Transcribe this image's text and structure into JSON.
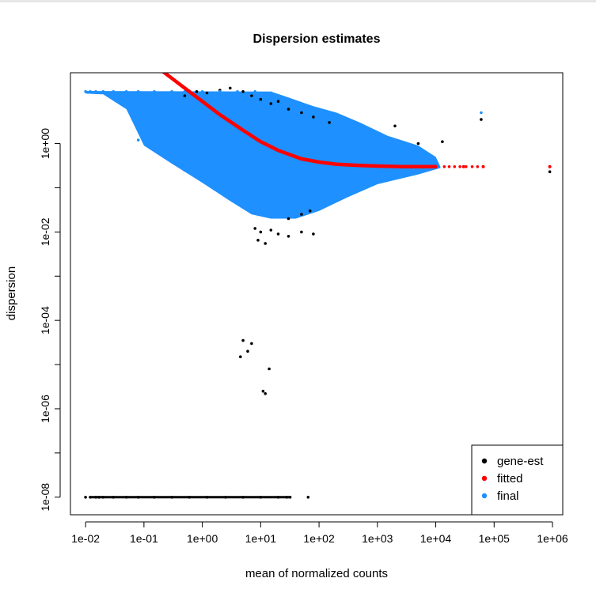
{
  "chart_data": {
    "type": "scatter",
    "title": "Dispersion estimates",
    "xlabel": "mean of normalized counts",
    "ylabel": "dispersion",
    "xscale": "log",
    "yscale": "log",
    "xlim": [
      0.0055,
      1500000
    ],
    "ylim": [
      4e-09,
      40
    ],
    "x_ticks": [
      0.01,
      0.1,
      1,
      10,
      100,
      1000,
      10000,
      100000,
      1000000
    ],
    "x_tick_labels": [
      "1e-02",
      "1e-01",
      "1e+00",
      "1e+01",
      "1e+02",
      "1e+03",
      "1e+04",
      "1e+05",
      "1e+06"
    ],
    "y_ticks": [
      1e-08,
      1e-07,
      1e-06,
      1e-05,
      0.0001,
      0.001,
      0.01,
      0.1,
      1
    ],
    "y_tick_labels": [
      "1e-08",
      "",
      "1e-06",
      "",
      "1e-04",
      "",
      "1e-02",
      "",
      "1e+00"
    ],
    "grid": false,
    "legend_position": "bottom-right",
    "legend": [
      {
        "label": "gene-est",
        "color": "#000000"
      },
      {
        "label": "fitted",
        "color": "#ff0000"
      },
      {
        "label": "final",
        "color": "#1e90ff"
      }
    ],
    "series": [
      {
        "name": "gene-est",
        "color": "#000000",
        "points": [
          [
            0.5,
            12
          ],
          [
            0.8,
            15
          ],
          [
            1.2,
            14
          ],
          [
            2.0,
            16
          ],
          [
            3.0,
            18
          ],
          [
            5.0,
            15
          ],
          [
            7.0,
            12
          ],
          [
            10,
            10
          ],
          [
            15,
            8
          ],
          [
            20,
            9
          ],
          [
            30,
            6
          ],
          [
            50,
            5
          ],
          [
            80,
            4
          ],
          [
            150,
            3
          ],
          [
            2000,
            2.5
          ],
          [
            5000,
            1.0
          ],
          [
            13000,
            1.1
          ],
          [
            60000,
            3.5
          ],
          [
            900000,
            0.23
          ],
          [
            8,
            0.012
          ],
          [
            10,
            0.01
          ],
          [
            15,
            0.011
          ],
          [
            20,
            0.009
          ],
          [
            30,
            0.008
          ],
          [
            50,
            0.01
          ],
          [
            80,
            0.009
          ],
          [
            30,
            0.02
          ],
          [
            50,
            0.025
          ],
          [
            70,
            0.03
          ],
          [
            9,
            0.0065
          ],
          [
            12,
            0.0055
          ],
          [
            5,
            3.5e-05
          ],
          [
            6,
            2e-05
          ],
          [
            4.5,
            1.5e-05
          ],
          [
            7,
            3e-05
          ],
          [
            14,
            8e-06
          ],
          [
            11,
            2.5e-06
          ],
          [
            12,
            2.2e-06
          ],
          [
            0.01,
            1e-08
          ],
          [
            0.012,
            1e-08
          ],
          [
            0.015,
            1e-08
          ],
          [
            0.017,
            1e-08
          ],
          [
            0.02,
            1e-08
          ],
          [
            0.03,
            1e-08
          ],
          [
            0.05,
            1e-08
          ],
          [
            0.08,
            1e-08
          ],
          [
            0.15,
            1e-08
          ],
          [
            0.3,
            1e-08
          ],
          [
            0.6,
            1e-08
          ],
          [
            1.2,
            1e-08
          ],
          [
            2.5,
            1e-08
          ],
          [
            5,
            1e-08
          ],
          [
            10,
            1e-08
          ],
          [
            20,
            1e-08
          ],
          [
            28,
            1e-08
          ],
          [
            32,
            1e-08
          ],
          [
            65,
            1e-08
          ]
        ]
      },
      {
        "name": "fitted",
        "color": "#ff0000",
        "points": [
          [
            0.18,
            50
          ],
          [
            0.3,
            30
          ],
          [
            0.5,
            18
          ],
          [
            1,
            9
          ],
          [
            2,
            4.5
          ],
          [
            5,
            2
          ],
          [
            10,
            1.1
          ],
          [
            20,
            0.7
          ],
          [
            50,
            0.45
          ],
          [
            100,
            0.38
          ],
          [
            200,
            0.34
          ],
          [
            500,
            0.32
          ],
          [
            1000,
            0.31
          ],
          [
            3000,
            0.3
          ],
          [
            10000,
            0.3
          ],
          [
            30000,
            0.3
          ],
          [
            65000,
            0.3
          ],
          [
            900000,
            0.3
          ]
        ]
      },
      {
        "name": "final",
        "color": "#1e90ff",
        "points": [
          [
            0.01,
            15
          ],
          [
            0.012,
            15
          ],
          [
            0.015,
            15
          ],
          [
            0.02,
            15
          ],
          [
            0.03,
            15
          ],
          [
            0.05,
            15
          ],
          [
            0.08,
            15
          ],
          [
            0.15,
            15
          ],
          [
            0.3,
            15
          ],
          [
            0.5,
            15
          ],
          [
            1,
            15
          ],
          [
            2,
            15
          ],
          [
            4,
            15
          ],
          [
            8,
            15
          ],
          [
            15,
            14
          ],
          [
            0.2,
            5
          ],
          [
            0.1,
            3
          ],
          [
            0.08,
            1.2
          ],
          [
            0.12,
            0.9
          ],
          [
            0.2,
            0.6
          ],
          [
            0.3,
            0.4
          ],
          [
            0.5,
            0.25
          ],
          [
            1,
            0.15
          ],
          [
            2,
            0.09
          ],
          [
            4,
            0.05
          ],
          [
            7,
            0.035
          ],
          [
            10,
            0.03
          ],
          [
            20,
            0.028
          ],
          [
            40,
            0.04
          ],
          [
            80,
            0.06
          ],
          [
            200,
            0.1
          ],
          [
            500,
            0.15
          ],
          [
            1000,
            0.2
          ],
          [
            3000,
            0.25
          ],
          [
            8000,
            0.28
          ],
          [
            20,
            3
          ],
          [
            60,
            2
          ],
          [
            150,
            1.5
          ],
          [
            400,
            1.2
          ],
          [
            1200,
            0.8
          ],
          [
            60000,
            5
          ],
          [
            900000,
            0.3
          ]
        ]
      }
    ]
  }
}
